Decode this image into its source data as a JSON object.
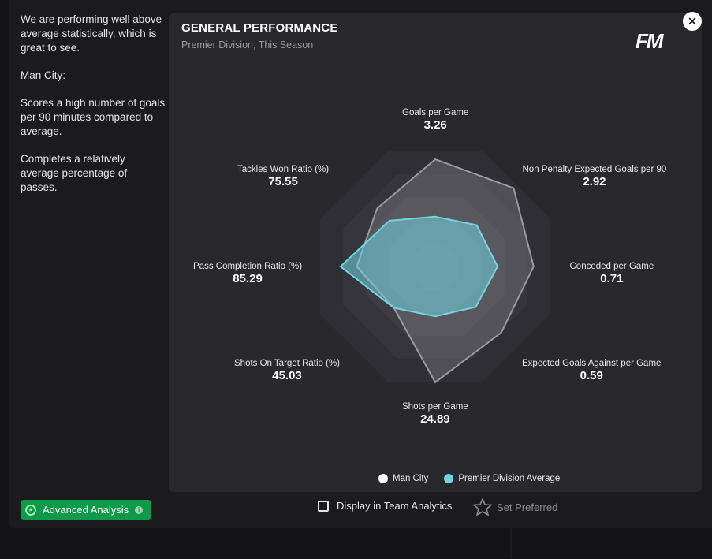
{
  "analysis": {
    "paragraphs": [
      "We are performing well above average statistically, which is great to see.",
      "Man City:",
      "Scores a high number of goals per 90 minutes compared to average.",
      "Completes a relatively average percentage of passes."
    ]
  },
  "card": {
    "title": "GENERAL PERFORMANCE",
    "subtitle": "Premier Division, This Season",
    "logo": "FM"
  },
  "close_icon": "close-icon",
  "colors": {
    "team": "#ffffff",
    "average": "#71d5e0",
    "accent_green": "#0f9a4a"
  },
  "chart_data": {
    "type": "radar",
    "title": "GENERAL PERFORMANCE",
    "axes": [
      {
        "name": "Goals per Game",
        "value": "3.26"
      },
      {
        "name": "Non Penalty Expected Goals per 90",
        "value": "2.92"
      },
      {
        "name": "Conceded per Game",
        "value": "0.71"
      },
      {
        "name": "Expected Goals Against per Game",
        "value": "0.59"
      },
      {
        "name": "Shots per Game",
        "value": "24.89"
      },
      {
        "name": "Shots On Target Ratio (%)",
        "value": "45.03"
      },
      {
        "name": "Pass Completion Ratio (%)",
        "value": "85.29"
      },
      {
        "name": "Tackles Won Ratio (%)",
        "value": "75.55"
      }
    ],
    "series": [
      {
        "name": "Man City",
        "values": [
          0.86,
          0.89,
          0.79,
          0.75,
          0.93,
          0.47,
          0.63,
          0.66
        ]
      },
      {
        "name": "Premier Division Average",
        "values": [
          0.4,
          0.47,
          0.5,
          0.46,
          0.4,
          0.47,
          0.76,
          0.52
        ]
      }
    ],
    "legend": [
      "Man City",
      "Premier Division Average"
    ],
    "legend_position": "bottom"
  },
  "footer": {
    "advanced_analysis": "Advanced Analysis",
    "display_in_team_analytics": "Display in Team Analytics",
    "set_preferred": "Set Preferred"
  }
}
